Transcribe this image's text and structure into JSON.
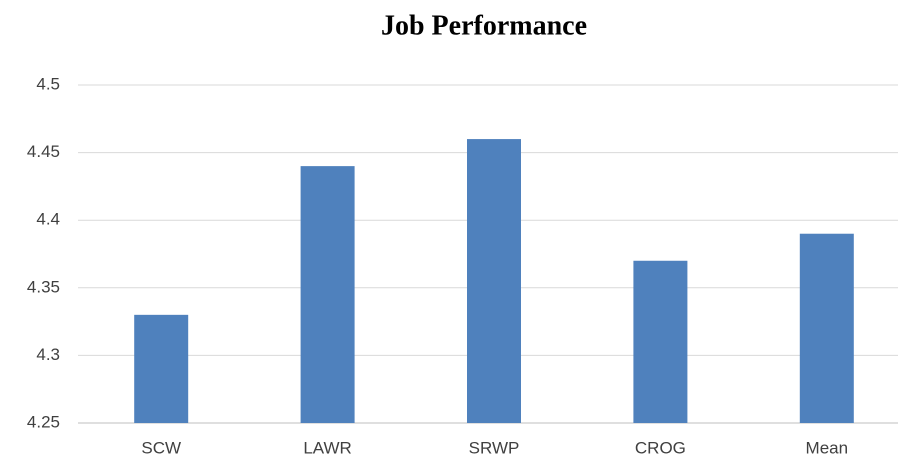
{
  "chart_data": {
    "type": "bar",
    "title": "Job Performance",
    "categories": [
      "SCW",
      "LAWR",
      "SRWP",
      "CROG",
      "Mean"
    ],
    "values": [
      4.33,
      4.44,
      4.46,
      4.37,
      4.39
    ],
    "color": "#4f81bd",
    "ylim": [
      4.25,
      4.5
    ],
    "yticks": [
      4.25,
      4.3,
      4.35,
      4.4,
      4.45,
      4.5
    ],
    "grid": true
  }
}
